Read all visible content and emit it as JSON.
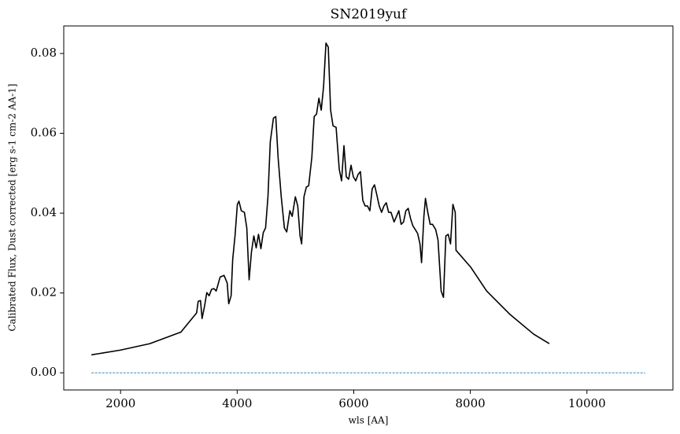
{
  "chart_data": {
    "type": "line",
    "title": "SN2019yuf",
    "x_label": "wls [AA]",
    "y_label": "Calibrated Flux, Dust corrected [erg s-1 cm-2 AA-1]",
    "xlim": [
      1025,
      11475
    ],
    "ylim": [
      -0.0043,
      0.0869
    ],
    "xticks": [
      2000,
      4000,
      6000,
      8000,
      10000
    ],
    "yticks": [
      {
        "value": 0,
        "label": "0.00"
      },
      {
        "value": 0.02,
        "label": "0.02"
      },
      {
        "value": 0.04,
        "label": "0.04"
      },
      {
        "value": 0.06,
        "label": "0.06"
      },
      {
        "value": 0.08,
        "label": "0.08"
      }
    ],
    "grid": false,
    "series": [
      {
        "color": "#000000",
        "linestyle": "solid",
        "x": [
          1500,
          2000,
          2500,
          3035,
          3304,
          3331,
          3371,
          3398,
          3439,
          3479,
          3519,
          3560,
          3600,
          3640,
          3708,
          3775,
          3829,
          3855,
          3896,
          3923,
          3963,
          4003,
          4030,
          4071,
          4124,
          4165,
          4205,
          4245,
          4286,
          4326,
          4366,
          4407,
          4447,
          4487,
          4528,
          4568,
          4622,
          4662,
          4702,
          4756,
          4810,
          4850,
          4904,
          4944,
          4998,
          5039,
          5079,
          5106,
          5146,
          5186,
          5227,
          5281,
          5321,
          5361,
          5402,
          5442,
          5482,
          5523,
          5563,
          5603,
          5644,
          5697,
          5751,
          5791,
          5832,
          5872,
          5912,
          5953,
          5993,
          6034,
          6074,
          6114,
          6155,
          6195,
          6235,
          6276,
          6316,
          6356,
          6397,
          6437,
          6477,
          6518,
          6558,
          6598,
          6639,
          6692,
          6733,
          6773,
          6813,
          6854,
          6894,
          6934,
          6975,
          7015,
          7055,
          7096,
          7136,
          7163,
          7203,
          7230,
          7270,
          7311,
          7351,
          7405,
          7445,
          7499,
          7539,
          7580,
          7620,
          7660,
          7701,
          7741,
          7754,
          8010,
          8279,
          8682,
          9085,
          9354
        ],
        "values": [
          0.0045,
          0.0057,
          0.0073,
          0.0102,
          0.015,
          0.0179,
          0.0181,
          0.0136,
          0.0166,
          0.0201,
          0.0193,
          0.0209,
          0.0211,
          0.0205,
          0.024,
          0.0244,
          0.0225,
          0.0173,
          0.0193,
          0.0284,
          0.0343,
          0.0422,
          0.043,
          0.0406,
          0.0402,
          0.0363,
          0.0233,
          0.0303,
          0.0343,
          0.0313,
          0.0347,
          0.0311,
          0.0351,
          0.0363,
          0.0441,
          0.0579,
          0.0638,
          0.0642,
          0.054,
          0.0441,
          0.0363,
          0.0353,
          0.0406,
          0.0392,
          0.0441,
          0.0418,
          0.0343,
          0.0323,
          0.0441,
          0.0465,
          0.0469,
          0.054,
          0.0642,
          0.0648,
          0.0688,
          0.0658,
          0.0717,
          0.0826,
          0.0816,
          0.0658,
          0.0619,
          0.0615,
          0.051,
          0.0481,
          0.0569,
          0.0491,
          0.0485,
          0.052,
          0.0491,
          0.0481,
          0.0497,
          0.0504,
          0.0432,
          0.0418,
          0.0418,
          0.0406,
          0.0461,
          0.0471,
          0.0445,
          0.0418,
          0.0402,
          0.0418,
          0.0426,
          0.0402,
          0.0402,
          0.0378,
          0.0392,
          0.0406,
          0.0372,
          0.0378,
          0.0406,
          0.0412,
          0.0386,
          0.0368,
          0.0359,
          0.0349,
          0.0323,
          0.0276,
          0.0392,
          0.0437,
          0.0402,
          0.0372,
          0.0372,
          0.0359,
          0.0333,
          0.0205,
          0.0189,
          0.0343,
          0.0347,
          0.0323,
          0.0422,
          0.0402,
          0.0307,
          0.0264,
          0.0205,
          0.0146,
          0.0097,
          0.0073
        ]
      },
      {
        "color": "#1f77b4",
        "linestyle": "dashed",
        "x": [
          1500,
          11000
        ],
        "values": [
          0,
          0
        ]
      }
    ]
  }
}
